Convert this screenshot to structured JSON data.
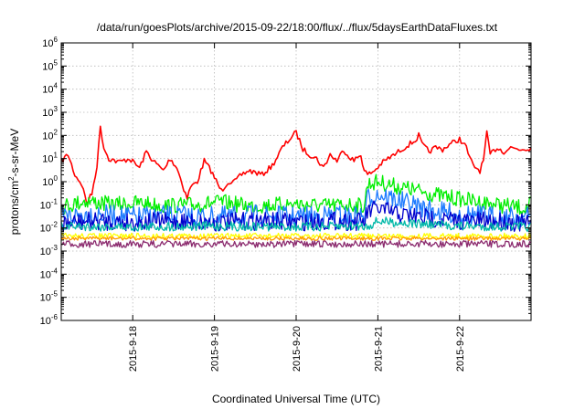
{
  "chart_data": {
    "type": "line",
    "title": "/data/run/goesPlots/archive/2015-09-22/18:00/flux/../flux/5daysEarthDataFluxes.txt",
    "xlabel": "Coordinated Universal Time (UTC)",
    "ylabel": {
      "prefix": "protons/cm",
      "sup": "2",
      "suffix": "-s-sr-MeV"
    },
    "y_scale": "log",
    "ylim": [
      1e-06,
      1000000.0
    ],
    "y_ticks": [
      {
        "exp": -6,
        "base": "10",
        "sup": "-6"
      },
      {
        "exp": -5,
        "base": "10",
        "sup": "-5"
      },
      {
        "exp": -4,
        "base": "10",
        "sup": "-4"
      },
      {
        "exp": -3,
        "base": "10",
        "sup": "-3"
      },
      {
        "exp": -2,
        "base": "10",
        "sup": "-2"
      },
      {
        "exp": -1,
        "base": "10",
        "sup": "-1"
      },
      {
        "exp": 0,
        "base": "10",
        "sup": "0"
      },
      {
        "exp": 1,
        "base": "10",
        "sup": "1"
      },
      {
        "exp": 2,
        "base": "10",
        "sup": "2"
      },
      {
        "exp": 3,
        "base": "10",
        "sup": "3"
      },
      {
        "exp": 4,
        "base": "10",
        "sup": "4"
      },
      {
        "exp": 5,
        "base": "10",
        "sup": "5"
      },
      {
        "exp": 6,
        "base": "10",
        "sup": "6"
      }
    ],
    "xlim": [
      "2015-09-17T03:00",
      "2015-09-22T21:00"
    ],
    "x_ticks": [
      {
        "t": "2015-09-18T00:00",
        "label": "2015-9-18"
      },
      {
        "t": "2015-09-19T00:00",
        "label": "2015-9-19"
      },
      {
        "t": "2015-09-20T00:00",
        "label": "2015-9-20"
      },
      {
        "t": "2015-09-21T00:00",
        "label": "2015-9-21"
      },
      {
        "t": "2015-09-22T00:00",
        "label": "2015-9-22"
      }
    ],
    "grid": true,
    "series": [
      {
        "color": "#ff0000",
        "points": [
          [
            "2015-09-17T03:00",
            8
          ],
          [
            "2015-09-17T05:00",
            15
          ],
          [
            "2015-09-17T07:00",
            2
          ],
          [
            "2015-09-17T09:00",
            0.8
          ],
          [
            "2015-09-17T10:30",
            0.12
          ],
          [
            "2015-09-17T12:00",
            0.3
          ],
          [
            "2015-09-17T13:30",
            5
          ],
          [
            "2015-09-17T14:30",
            250
          ],
          [
            "2015-09-17T15:30",
            30
          ],
          [
            "2015-09-17T17:00",
            10
          ],
          [
            "2015-09-17T20:00",
            7
          ],
          [
            "2015-09-17T23:00",
            10
          ],
          [
            "2015-09-18T02:00",
            4
          ],
          [
            "2015-09-18T04:00",
            20
          ],
          [
            "2015-09-18T06:00",
            8
          ],
          [
            "2015-09-18T09:00",
            3
          ],
          [
            "2015-09-18T11:00",
            10
          ],
          [
            "2015-09-18T13:00",
            4
          ],
          [
            "2015-09-18T15:00",
            0.5
          ],
          [
            "2015-09-18T16:00",
            0.2
          ],
          [
            "2015-09-18T17:00",
            0.6
          ],
          [
            "2015-09-18T19:00",
            1
          ],
          [
            "2015-09-18T21:00",
            8
          ],
          [
            "2015-09-18T23:00",
            3
          ],
          [
            "2015-09-19T00:00",
            1.5
          ],
          [
            "2015-09-19T02:00",
            0.4
          ],
          [
            "2015-09-19T04:00",
            1
          ],
          [
            "2015-09-19T06:00",
            1
          ],
          [
            "2015-09-19T08:00",
            2
          ],
          [
            "2015-09-19T10:00",
            3
          ],
          [
            "2015-09-19T12:00",
            2.5
          ],
          [
            "2015-09-19T14:00",
            2
          ],
          [
            "2015-09-19T17:00",
            5
          ],
          [
            "2015-09-19T20:00",
            30
          ],
          [
            "2015-09-19T23:00",
            100
          ],
          [
            "2015-09-20T00:00",
            130
          ],
          [
            "2015-09-20T01:00",
            60
          ],
          [
            "2015-09-20T02:00",
            25
          ],
          [
            "2015-09-20T04:00",
            15
          ],
          [
            "2015-09-20T06:00",
            10
          ],
          [
            "2015-09-20T08:00",
            4
          ],
          [
            "2015-09-20T10:00",
            15
          ],
          [
            "2015-09-20T12:00",
            8
          ],
          [
            "2015-09-20T14:00",
            25
          ],
          [
            "2015-09-20T15:00",
            15
          ],
          [
            "2015-09-20T17:00",
            8
          ],
          [
            "2015-09-20T19:00",
            15
          ],
          [
            "2015-09-20T20:00",
            3
          ],
          [
            "2015-09-20T21:00",
            2
          ],
          [
            "2015-09-20T23:00",
            3
          ],
          [
            "2015-09-21T01:00",
            6
          ],
          [
            "2015-09-21T03:00",
            10
          ],
          [
            "2015-09-21T05:00",
            15
          ],
          [
            "2015-09-21T07:00",
            25
          ],
          [
            "2015-09-21T09:00",
            40
          ],
          [
            "2015-09-21T11:00",
            60
          ],
          [
            "2015-09-21T12:00",
            100
          ],
          [
            "2015-09-21T13:00",
            40
          ],
          [
            "2015-09-21T15:00",
            20
          ],
          [
            "2015-09-21T17:00",
            30
          ],
          [
            "2015-09-21T19:00",
            25
          ],
          [
            "2015-09-21T21:00",
            40
          ],
          [
            "2015-09-22T00:00",
            70
          ],
          [
            "2015-09-22T02:00",
            30
          ],
          [
            "2015-09-22T03:00",
            10
          ],
          [
            "2015-09-22T04:00",
            5
          ],
          [
            "2015-09-22T06:00",
            3
          ],
          [
            "2015-09-22T07:00",
            8
          ],
          [
            "2015-09-22T08:00",
            120
          ],
          [
            "2015-09-22T09:00",
            15
          ],
          [
            "2015-09-22T11:00",
            30
          ],
          [
            "2015-09-22T13:00",
            20
          ],
          [
            "2015-09-22T15:00",
            30
          ],
          [
            "2015-09-22T18:00",
            25
          ],
          [
            "2015-09-22T21:00",
            30
          ]
        ]
      },
      {
        "color": "#00ee00",
        "points": [
          [
            "2015-09-17T03:00",
            0.08
          ],
          [
            "2015-09-17T10:00",
            0.15
          ],
          [
            "2015-09-17T18:00",
            0.1
          ],
          [
            "2015-09-18T02:00",
            0.12
          ],
          [
            "2015-09-18T10:00",
            0.09
          ],
          [
            "2015-09-18T18:00",
            0.1
          ],
          [
            "2015-09-19T02:00",
            0.13
          ],
          [
            "2015-09-19T10:00",
            0.09
          ],
          [
            "2015-09-19T18:00",
            0.1
          ],
          [
            "2015-09-20T00:00",
            0.11
          ],
          [
            "2015-09-20T08:00",
            0.09
          ],
          [
            "2015-09-20T16:00",
            0.1
          ],
          [
            "2015-09-20T20:00",
            0.09
          ],
          [
            "2015-09-20T21:00",
            0.8
          ],
          [
            "2015-09-21T00:00",
            1.0
          ],
          [
            "2015-09-21T06:00",
            0.6
          ],
          [
            "2015-09-21T12:00",
            0.4
          ],
          [
            "2015-09-21T18:00",
            0.25
          ],
          [
            "2015-09-22T00:00",
            0.18
          ],
          [
            "2015-09-22T08:00",
            0.12
          ],
          [
            "2015-09-22T16:00",
            0.08
          ],
          [
            "2015-09-22T20:00",
            0.07
          ],
          [
            "2015-09-22T21:00",
            0.12
          ]
        ],
        "noise": 0.35
      },
      {
        "color": "#1e7bff",
        "points": [
          [
            "2015-09-17T03:00",
            0.03
          ],
          [
            "2015-09-17T12:00",
            0.04
          ],
          [
            "2015-09-18T00:00",
            0.03
          ],
          [
            "2015-09-18T12:00",
            0.035
          ],
          [
            "2015-09-19T00:00",
            0.03
          ],
          [
            "2015-09-19T12:00",
            0.035
          ],
          [
            "2015-09-20T00:00",
            0.03
          ],
          [
            "2015-09-20T12:00",
            0.035
          ],
          [
            "2015-09-20T20:00",
            0.03
          ],
          [
            "2015-09-20T21:00",
            0.2
          ],
          [
            "2015-09-21T00:00",
            0.3
          ],
          [
            "2015-09-21T06:00",
            0.15
          ],
          [
            "2015-09-21T12:00",
            0.08
          ],
          [
            "2015-09-21T18:00",
            0.05
          ],
          [
            "2015-09-22T00:00",
            0.04
          ],
          [
            "2015-09-22T12:00",
            0.03
          ],
          [
            "2015-09-22T21:00",
            0.03
          ]
        ],
        "noise": 0.45
      },
      {
        "color": "#0000cc",
        "points": [
          [
            "2015-09-17T03:00",
            0.015
          ],
          [
            "2015-09-17T12:00",
            0.02
          ],
          [
            "2015-09-18T00:00",
            0.018
          ],
          [
            "2015-09-18T12:00",
            0.02
          ],
          [
            "2015-09-19T00:00",
            0.017
          ],
          [
            "2015-09-19T12:00",
            0.02
          ],
          [
            "2015-09-20T00:00",
            0.018
          ],
          [
            "2015-09-20T12:00",
            0.02
          ],
          [
            "2015-09-20T20:00",
            0.018
          ],
          [
            "2015-09-20T21:00",
            0.05
          ],
          [
            "2015-09-21T00:00",
            0.07
          ],
          [
            "2015-09-21T06:00",
            0.04
          ],
          [
            "2015-09-21T12:00",
            0.03
          ],
          [
            "2015-09-21T18:00",
            0.025
          ],
          [
            "2015-09-22T00:00",
            0.02
          ],
          [
            "2015-09-22T12:00",
            0.02
          ],
          [
            "2015-09-22T21:00",
            0.015
          ]
        ],
        "noise": 0.4
      },
      {
        "color": "#00b8a8",
        "points": [
          [
            "2015-09-17T03:00",
            0.012
          ],
          [
            "2015-09-18T00:00",
            0.011
          ],
          [
            "2015-09-19T00:00",
            0.012
          ],
          [
            "2015-09-20T00:00",
            0.011
          ],
          [
            "2015-09-20T21:00",
            0.012
          ],
          [
            "2015-09-21T00:00",
            0.02
          ],
          [
            "2015-09-21T12:00",
            0.015
          ],
          [
            "2015-09-22T00:00",
            0.012
          ],
          [
            "2015-09-22T21:00",
            0.011
          ]
        ],
        "noise": 0.2
      },
      {
        "color": "#ffff00",
        "points": [
          [
            "2015-09-17T03:00",
            0.0045
          ],
          [
            "2015-09-18T00:00",
            0.0045
          ],
          [
            "2015-09-19T00:00",
            0.0045
          ],
          [
            "2015-09-20T00:00",
            0.0045
          ],
          [
            "2015-09-21T00:00",
            0.0045
          ],
          [
            "2015-09-22T00:00",
            0.0045
          ],
          [
            "2015-09-22T21:00",
            0.0045
          ]
        ],
        "noise": 0.12
      },
      {
        "color": "#ff9900",
        "points": [
          [
            "2015-09-17T03:00",
            0.0035
          ],
          [
            "2015-09-18T00:00",
            0.0035
          ],
          [
            "2015-09-19T00:00",
            0.0035
          ],
          [
            "2015-09-20T00:00",
            0.0035
          ],
          [
            "2015-09-21T00:00",
            0.0035
          ],
          [
            "2015-09-22T00:00",
            0.0035
          ],
          [
            "2015-09-22T21:00",
            0.0035
          ]
        ],
        "noise": 0.08
      },
      {
        "color": "#8b2a6e",
        "points": [
          [
            "2015-09-17T03:00",
            0.002
          ],
          [
            "2015-09-18T00:00",
            0.002
          ],
          [
            "2015-09-19T00:00",
            0.002
          ],
          [
            "2015-09-20T00:00",
            0.002
          ],
          [
            "2015-09-21T00:00",
            0.002
          ],
          [
            "2015-09-22T00:00",
            0.002
          ],
          [
            "2015-09-22T21:00",
            0.002
          ]
        ],
        "noise": 0.15
      }
    ]
  }
}
